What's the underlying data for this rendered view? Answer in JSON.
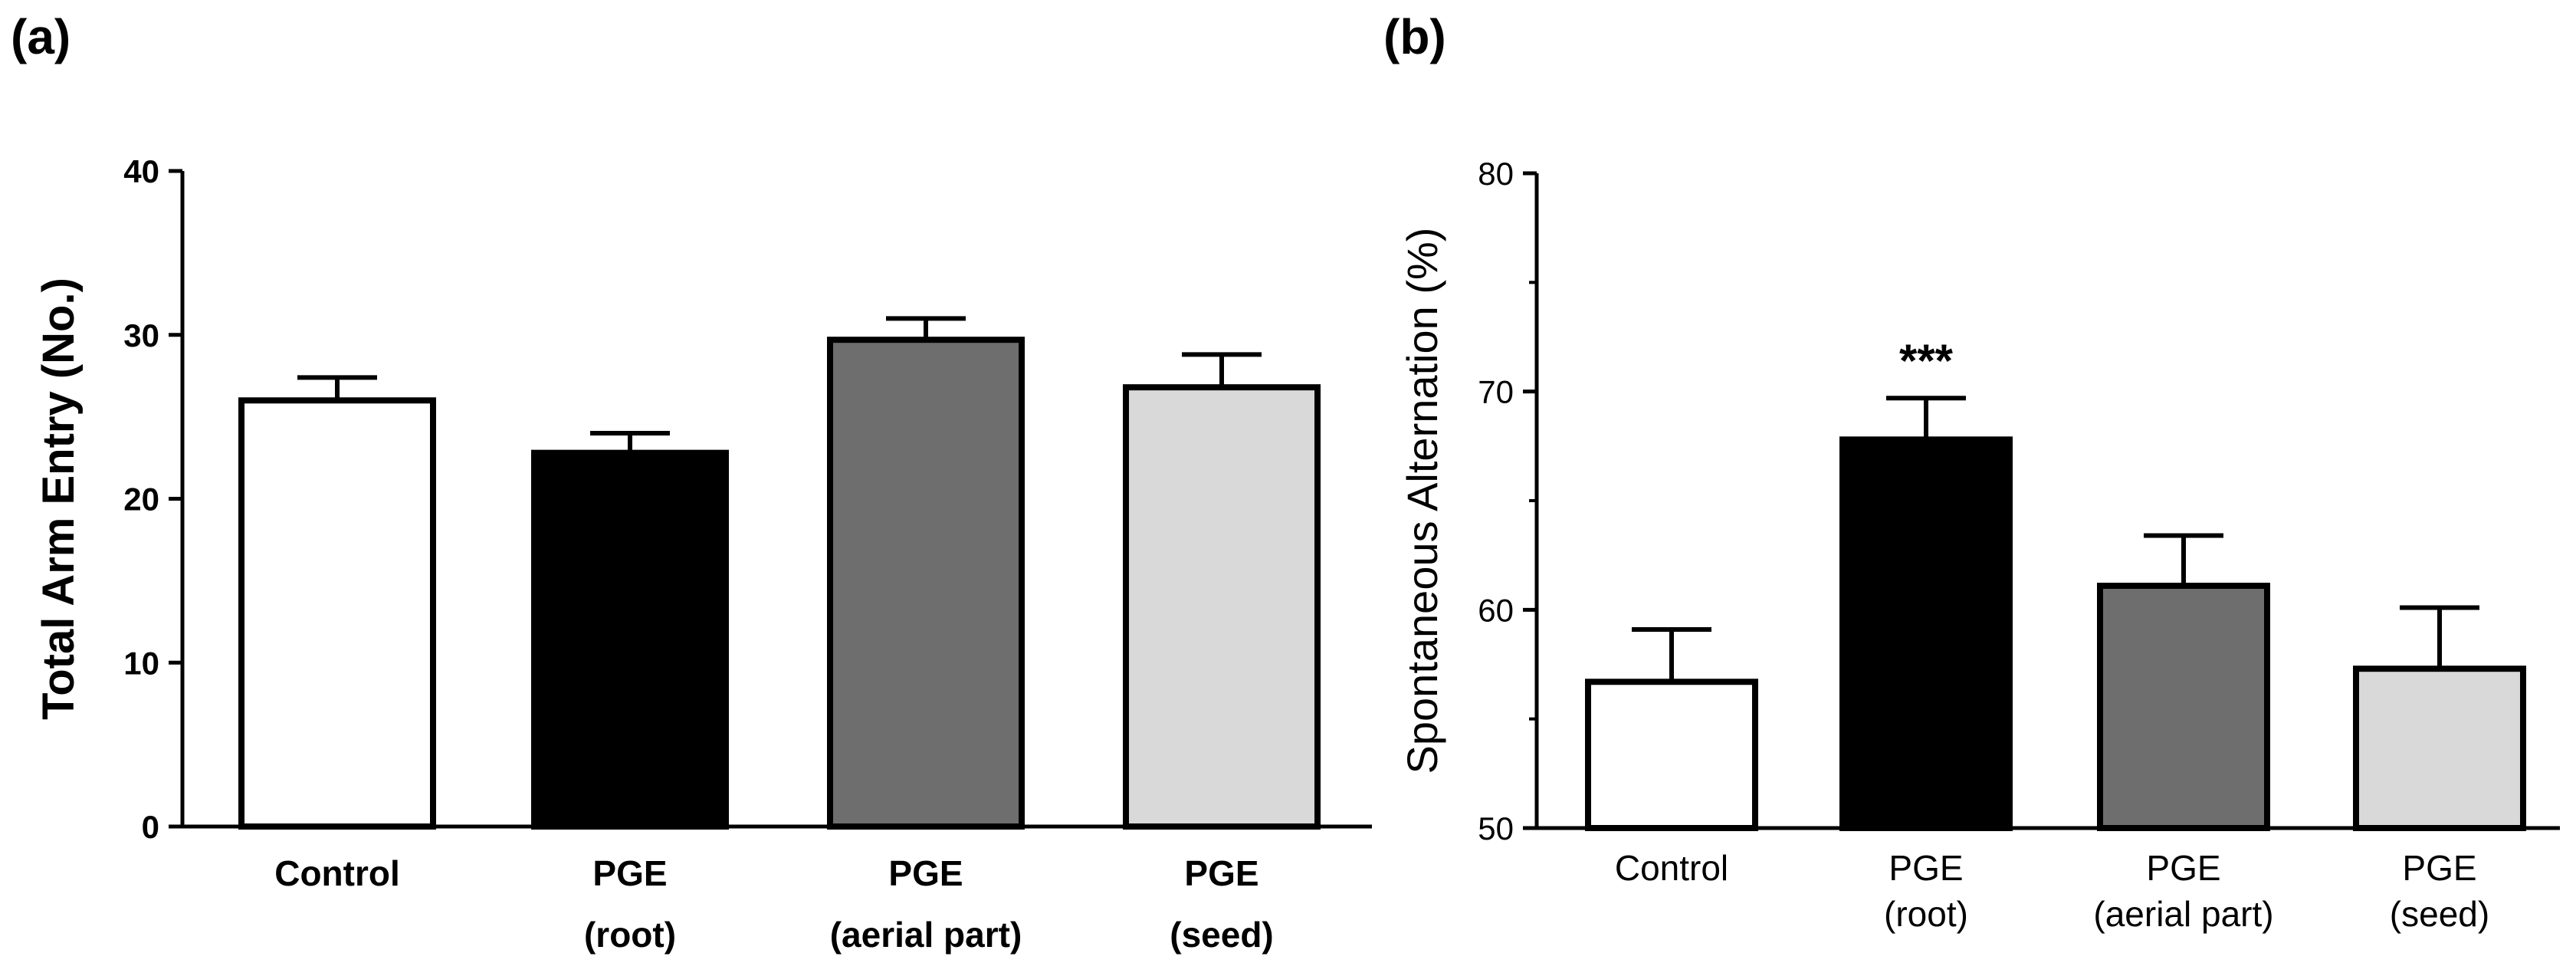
{
  "chart_data": [
    {
      "panel": "(a)",
      "type": "bar",
      "title": "",
      "ylabel": "Total Arm Entry (No.)",
      "xlabel": "",
      "ylim": [
        0,
        40
      ],
      "yticks": [
        "0",
        "10",
        "20",
        "30",
        "40"
      ],
      "categories": [
        [
          "Control"
        ],
        [
          "PGE",
          "(root)"
        ],
        [
          "PGE",
          "(aerial part)"
        ],
        [
          "PGE",
          "(seed)"
        ]
      ],
      "values": [
        26,
        22.8,
        29.7,
        26.8
      ],
      "errors": [
        1.4,
        1.2,
        1.3,
        2.0
      ],
      "fills": [
        "#ffffff",
        "#000000",
        "#6e6e6e",
        "#d9d9d9"
      ],
      "annotations": [
        "",
        "",
        "",
        ""
      ]
    },
    {
      "panel": "(b)",
      "type": "bar",
      "title": "",
      "ylabel": "Spontaneous Alternation (%)",
      "xlabel": "",
      "ylim": [
        50,
        80
      ],
      "yticks": [
        "50",
        "60",
        "70",
        "80"
      ],
      "categories": [
        [
          "Control"
        ],
        [
          "PGE",
          "(root)"
        ],
        [
          "PGE",
          "(aerial part)"
        ],
        [
          "PGE",
          "(seed)"
        ]
      ],
      "values": [
        56.7,
        67.8,
        61.1,
        57.3
      ],
      "errors": [
        2.4,
        1.9,
        2.3,
        2.8
      ],
      "fills": [
        "#ffffff",
        "#000000",
        "#6e6e6e",
        "#d9d9d9"
      ],
      "annotations": [
        "",
        "***",
        "",
        ""
      ]
    }
  ]
}
